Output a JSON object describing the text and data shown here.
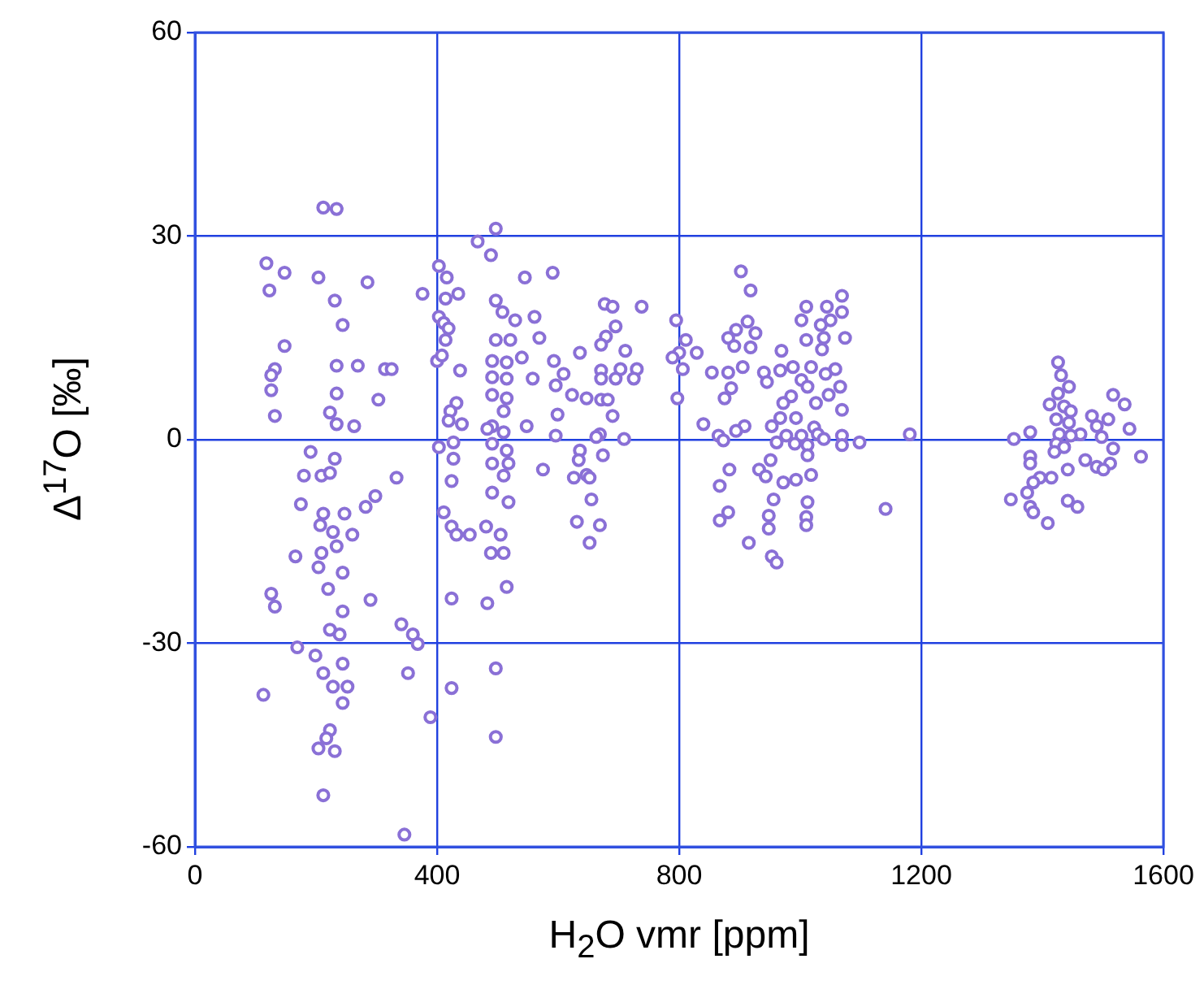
{
  "chart_data": {
    "type": "scatter",
    "xlabel": "H$_{2}$O vmr [ppm]",
    "ylabel": "Δ$^{17}$O  [‰]",
    "xlim": [
      0,
      1600
    ],
    "xticks": [
      0,
      400,
      800,
      1200,
      1600
    ],
    "ylim": [
      -60,
      60
    ],
    "yticks": [
      -60,
      -30,
      0,
      30,
      60
    ],
    "grid": true,
    "legend": false,
    "marker": "circle",
    "series": [
      {
        "color": "#8a70d6",
        "x": [
          212,
          234,
          118,
          148,
          204,
          123,
          285,
          376,
          231,
          244,
          148,
          132,
          126,
          234,
          269,
          314,
          325,
          126,
          234,
          303,
          132,
          223,
          234,
          263,
          191,
          231,
          180,
          209,
          223,
          333,
          175,
          298,
          282,
          212,
          247,
          207,
          228,
          260,
          234,
          166,
          209,
          204,
          244,
          220,
          126,
          132,
          290,
          244,
          223,
          239,
          341,
          360,
          368,
          169,
          199,
          244,
          212,
          352,
          228,
          252,
          113,
          244,
          389,
          223,
          217,
          204,
          231,
          212,
          346,
          497,
          467,
          489,
          403,
          416,
          545,
          591,
          435,
          414,
          497,
          508,
          529,
          561,
          677,
          690,
          738,
          403,
          411,
          419,
          414,
          497,
          521,
          569,
          695,
          679,
          671,
          636,
          711,
          400,
          408,
          438,
          491,
          515,
          540,
          593,
          609,
          671,
          703,
          730,
          491,
          515,
          558,
          596,
          671,
          695,
          725,
          623,
          647,
          671,
          682,
          491,
          515,
          432,
          422,
          419,
          441,
          510,
          690,
          599,
          548,
          491,
          483,
          510,
          596,
          669,
          663,
          427,
          403,
          709,
          491,
          515,
          491,
          518,
          636,
          674,
          427,
          634,
          510,
          575,
          626,
          647,
          652,
          424,
          491,
          518,
          655,
          411,
          631,
          669,
          424,
          432,
          454,
          481,
          505,
          489,
          510,
          652,
          515,
          424,
          483,
          497,
          424,
          497,
          902,
          918,
          1069,
          1010,
          1044,
          1069,
          795,
          1002,
          1050,
          913,
          1034,
          894,
          926,
          811,
          881,
          1010,
          1039,
          1074,
          891,
          918,
          800,
          829,
          969,
          1036,
          789,
          806,
          905,
          854,
          881,
          940,
          967,
          988,
          1018,
          1058,
          945,
          1002,
          1042,
          1012,
          1066,
          886,
          875,
          797,
          985,
          1047,
          972,
          1026,
          1069,
          993,
          967,
          840,
          908,
          894,
          953,
          1023,
          865,
          977,
          1002,
          1029,
          1069,
          873,
          961,
          991,
          1012,
          1039,
          1069,
          1098,
          1181,
          1012,
          951,
          932,
          883,
          943,
          972,
          993,
          1018,
          867,
          956,
          1012,
          881,
          867,
          948,
          948,
          1010,
          1010,
          915,
          953,
          961,
          1141,
          1426,
          1431,
          1444,
          1426,
          1517,
          1536,
          1412,
          1436,
          1447,
          1482,
          1509,
          1423,
          1444,
          1490,
          1544,
          1380,
          1428,
          1463,
          1447,
          1353,
          1498,
          1423,
          1436,
          1517,
          1420,
          1380,
          1563,
          1471,
          1512,
          1380,
          1490,
          1442,
          1501,
          1415,
          1396,
          1385,
          1375,
          1348,
          1442,
          1458,
          1380,
          1385,
          1409
        ],
        "values": [
          34.2,
          34,
          26,
          24.6,
          23.9,
          22,
          23.2,
          21.5,
          20.5,
          16.9,
          13.8,
          10.4,
          9.5,
          10.9,
          10.9,
          10.4,
          10.4,
          7.3,
          6.8,
          5.9,
          3.5,
          4,
          2.3,
          2,
          -1.8,
          -2.8,
          -5.3,
          -5.3,
          -4.9,
          -5.6,
          -9.5,
          -8.3,
          -9.9,
          -10.9,
          -10.9,
          -12.6,
          -13.6,
          -14,
          -15.7,
          -17.2,
          -16.7,
          -18.8,
          -19.6,
          -22,
          -22.7,
          -24.6,
          -23.6,
          -25.3,
          -28,
          -28.7,
          -27.2,
          -28.7,
          -30.1,
          -30.6,
          -31.8,
          -33,
          -34.4,
          -34.4,
          -36.4,
          -36.4,
          -37.6,
          -38.8,
          -40.9,
          -42.8,
          -44,
          -45.5,
          -45.9,
          -52.4,
          -58.2,
          31.1,
          29.2,
          27.2,
          25.6,
          23.9,
          23.9,
          24.6,
          21.5,
          20.8,
          20.5,
          18.8,
          17.6,
          18.1,
          20,
          19.6,
          19.6,
          18.1,
          17.2,
          16.4,
          14.7,
          14.7,
          14.7,
          15,
          16.7,
          15.2,
          14,
          12.8,
          13.1,
          11.6,
          12.4,
          10.2,
          11.6,
          11.4,
          12.1,
          11.6,
          9.7,
          10.2,
          10.4,
          10.4,
          9.2,
          9,
          9,
          8,
          9,
          9,
          9,
          6.6,
          6.1,
          5.9,
          5.9,
          6.6,
          6.1,
          5.4,
          4.2,
          2.8,
          2.3,
          4.2,
          3.5,
          3.7,
          2,
          2,
          1.6,
          1.1,
          0.6,
          0.8,
          0.4,
          -0.4,
          -1.1,
          0.1,
          -0.6,
          -1.6,
          -3.5,
          -3.5,
          -1.6,
          -2.3,
          -2.8,
          -3,
          -5.3,
          -4.4,
          -5.6,
          -5.2,
          -5.6,
          -6.1,
          -7.8,
          -9.2,
          -8.8,
          -10.7,
          -12.1,
          -12.6,
          -12.8,
          -14,
          -14,
          -12.8,
          -14,
          -16.7,
          -16.7,
          -15.2,
          -21.7,
          -23.4,
          -24.1,
          -33.7,
          -36.6,
          -43.8,
          24.8,
          22,
          21.2,
          19.6,
          19.6,
          18.8,
          17.6,
          17.6,
          17.6,
          17.4,
          16.9,
          16.2,
          15.7,
          14.7,
          15,
          14.7,
          15,
          15,
          13.8,
          13.6,
          12.8,
          12.8,
          13.1,
          13.3,
          12.1,
          10.4,
          10.7,
          9.9,
          9.9,
          9.9,
          10.2,
          10.7,
          10.7,
          10.4,
          8.5,
          8.8,
          9.7,
          7.8,
          7.8,
          7.6,
          6.1,
          6.1,
          6.4,
          6.6,
          5.4,
          5.4,
          4.4,
          3.2,
          3.2,
          2.3,
          2,
          1.3,
          2,
          1.8,
          0.6,
          0.6,
          0.6,
          0.8,
          0.6,
          -0.1,
          -0.4,
          -0.6,
          -0.8,
          0.1,
          -0.8,
          -0.4,
          0.8,
          -2.3,
          -3,
          -4.4,
          -4.4,
          -5.4,
          -6.3,
          -5.9,
          -5.2,
          -6.8,
          -8.8,
          -9.2,
          -10.7,
          -11.9,
          -11.2,
          -13.1,
          -11.4,
          -12.6,
          -15.2,
          -17.2,
          -18.1,
          -10.2,
          11.4,
          9.5,
          7.8,
          6.8,
          6.6,
          5.2,
          5.2,
          4.9,
          4.2,
          3.5,
          3,
          3,
          2.5,
          2,
          1.6,
          1.1,
          0.8,
          0.8,
          0.6,
          0.1,
          0.4,
          -0.6,
          -1.1,
          -1.3,
          -1.8,
          -2.5,
          -2.5,
          -3,
          -3.5,
          -3.5,
          -4,
          -4.4,
          -4.4,
          -5.6,
          -5.6,
          -6.3,
          -7.8,
          -8.8,
          -9,
          -9.9,
          -9.9,
          -10.7,
          -12.3
        ]
      }
    ]
  }
}
